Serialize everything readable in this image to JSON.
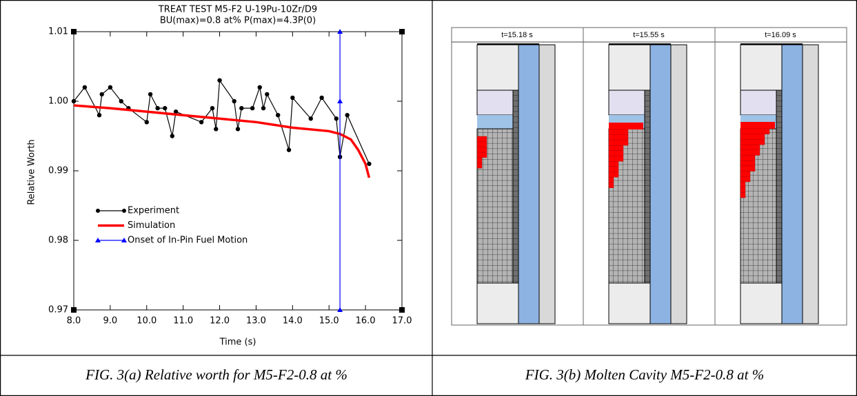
{
  "chart_data": {
    "type": "line",
    "title": "TREAT TEST M5-F2  U-19Pu-10Zr/D9",
    "subtitle": "BU(max)=0.8 at%  P(max)=4.3P(0)",
    "x_label": "Time (s)",
    "y_label": "Relative Worth",
    "xlim": [
      8,
      17
    ],
    "xticks": [
      {
        "value": 8,
        "label": "8.0"
      },
      {
        "value": 9,
        "label": "9.0"
      },
      {
        "value": 10,
        "label": "10.0"
      },
      {
        "value": 11,
        "label": "11.0"
      },
      {
        "value": 12,
        "label": "12.0"
      },
      {
        "value": 13,
        "label": "13.0"
      },
      {
        "value": 14,
        "label": "14.0"
      },
      {
        "value": 15,
        "label": "15.0"
      },
      {
        "value": 16,
        "label": "16.0"
      },
      {
        "value": 17,
        "label": "17.0"
      }
    ],
    "ylim": [
      0.97,
      1.01
    ],
    "yticks": [
      0.97,
      0.98,
      0.99,
      {
        "value": 1,
        "label": "1.00"
      },
      1.01
    ],
    "legend": "center left",
    "series": [
      {
        "name": "Experiment",
        "color": "#000000",
        "marker": "circle",
        "x": [
          8.0,
          8.3,
          8.7,
          8.77,
          9.0,
          9.3,
          9.5,
          10.0,
          10.1,
          10.3,
          10.5,
          10.7,
          10.8,
          11.5,
          11.8,
          11.9,
          12.0,
          12.4,
          12.5,
          12.6,
          12.9,
          13.1,
          13.2,
          13.3,
          13.6,
          13.9,
          14.0,
          14.5,
          14.8,
          15.2,
          15.3,
          15.5,
          16.1
        ],
        "values": [
          1.0,
          1.002,
          0.998,
          1.001,
          1.002,
          1.0,
          0.999,
          0.997,
          1.001,
          0.999,
          0.999,
          0.995,
          0.9985,
          0.997,
          0.999,
          0.996,
          1.003,
          1.0,
          0.996,
          0.999,
          0.999,
          1.002,
          0.999,
          1.001,
          0.998,
          0.993,
          1.0005,
          0.9975,
          1.0005,
          0.9975,
          0.992,
          0.998,
          0.991
        ]
      },
      {
        "name": "Simulation",
        "color": "#ff0000",
        "x": [
          8.0,
          9.0,
          10.0,
          11.0,
          12.0,
          13.0,
          14.0,
          15.0,
          15.3,
          15.6,
          15.8,
          16.0,
          16.1
        ],
        "values": [
          0.9994,
          0.999,
          0.9985,
          0.998,
          0.9975,
          0.997,
          0.9962,
          0.9957,
          0.9953,
          0.9945,
          0.993,
          0.991,
          0.989
        ]
      },
      {
        "name": "Onset of In-Pin Fuel Motion",
        "color": "#0000ff",
        "marker": "triangle",
        "x": [
          15.3,
          15.3,
          15.3
        ],
        "values": [
          0.97,
          1.0,
          1.01
        ]
      }
    ]
  },
  "cavity_figure": {
    "panels": [
      {
        "label": "t=15.18 s"
      },
      {
        "label": "t=15.55 s"
      },
      {
        "label": "t=16.09 s"
      }
    ]
  },
  "captions": [
    "FIG. 3(a) Relative worth for M5-F2-0.8 at %",
    "FIG. 3(b) Molten Cavity M5-F2-0.8 at %"
  ]
}
